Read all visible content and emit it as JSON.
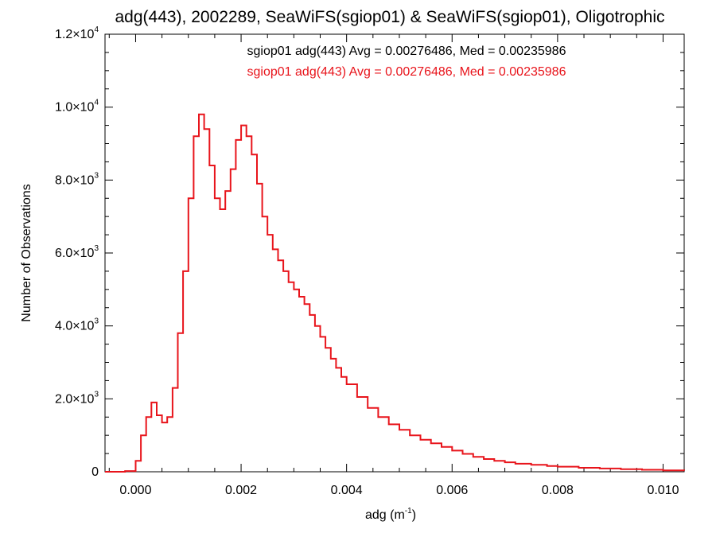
{
  "chart_data": {
    "type": "line",
    "title": "adg(443), 2002289, SeaWiFS(sgiop01) & SeaWiFS(sgiop01), Oligotrophic",
    "xlabel": {
      "base": "adg (m",
      "sup": "-1",
      "suffix": ")"
    },
    "ylabel": "Number of Observations",
    "xlim": [
      -0.00058,
      0.0104
    ],
    "ylim": [
      0,
      12000
    ],
    "grid": false,
    "legend_position": "top-center",
    "x_ticks": [
      {
        "value": 0.0,
        "label": "0.000"
      },
      {
        "value": 0.002,
        "label": "0.002"
      },
      {
        "value": 0.004,
        "label": "0.004"
      },
      {
        "value": 0.006,
        "label": "0.006"
      },
      {
        "value": 0.008,
        "label": "0.008"
      },
      {
        "value": 0.01,
        "label": "0.010"
      }
    ],
    "y_ticks": [
      {
        "value": 0,
        "mantissa": "0",
        "exp": ""
      },
      {
        "value": 2000,
        "mantissa": "2.0×10",
        "exp": "3"
      },
      {
        "value": 4000,
        "mantissa": "4.0×10",
        "exp": "3"
      },
      {
        "value": 6000,
        "mantissa": "6.0×10",
        "exp": "3"
      },
      {
        "value": 8000,
        "mantissa": "8.0×10",
        "exp": "3"
      },
      {
        "value": 10000,
        "mantissa": "1.0×10",
        "exp": "4"
      },
      {
        "value": 12000,
        "mantissa": "1.2×10",
        "exp": "4"
      }
    ],
    "annotations": [
      {
        "text": "sgiop01 adg(443) Avg = 0.00276486, Med = 0.00235986",
        "color": "#000000"
      },
      {
        "text": "sgiop01 adg(443) Avg = 0.00276486, Med = 0.00235986",
        "color": "#e8141b"
      }
    ],
    "series": [
      {
        "color": "#e8141b",
        "x": [
          -0.0006,
          -0.0002,
          0.0,
          0.0001,
          0.0002,
          0.0003,
          0.0004,
          0.0005,
          0.0006,
          0.0007,
          0.0008,
          0.0009,
          0.001,
          0.0011,
          0.0012,
          0.0013,
          0.0014,
          0.0015,
          0.0016,
          0.0017,
          0.0018,
          0.0019,
          0.002,
          0.0021,
          0.0022,
          0.0023,
          0.0024,
          0.0025,
          0.0026,
          0.0027,
          0.0028,
          0.0029,
          0.003,
          0.0031,
          0.0032,
          0.0033,
          0.0034,
          0.0035,
          0.0036,
          0.0037,
          0.0038,
          0.0039,
          0.004,
          0.0042,
          0.0044,
          0.0046,
          0.0048,
          0.005,
          0.0052,
          0.0054,
          0.0056,
          0.0058,
          0.006,
          0.0062,
          0.0064,
          0.0066,
          0.0068,
          0.007,
          0.0072,
          0.0075,
          0.0078,
          0.008,
          0.0084,
          0.0088,
          0.0092,
          0.0096,
          0.01,
          0.0104
        ],
        "y": [
          0,
          20,
          300,
          1000,
          1500,
          1900,
          1550,
          1350,
          1500,
          2300,
          3800,
          5500,
          7500,
          9200,
          9800,
          9400,
          8400,
          7500,
          7200,
          7700,
          8300,
          9100,
          9500,
          9200,
          8700,
          7900,
          7000,
          6500,
          6100,
          5800,
          5500,
          5200,
          5000,
          4800,
          4600,
          4300,
          4000,
          3700,
          3400,
          3100,
          2850,
          2600,
          2400,
          2050,
          1750,
          1500,
          1300,
          1150,
          1000,
          880,
          780,
          680,
          580,
          490,
          410,
          350,
          300,
          260,
          220,
          190,
          160,
          140,
          110,
          90,
          70,
          55,
          40,
          30
        ]
      }
    ]
  }
}
